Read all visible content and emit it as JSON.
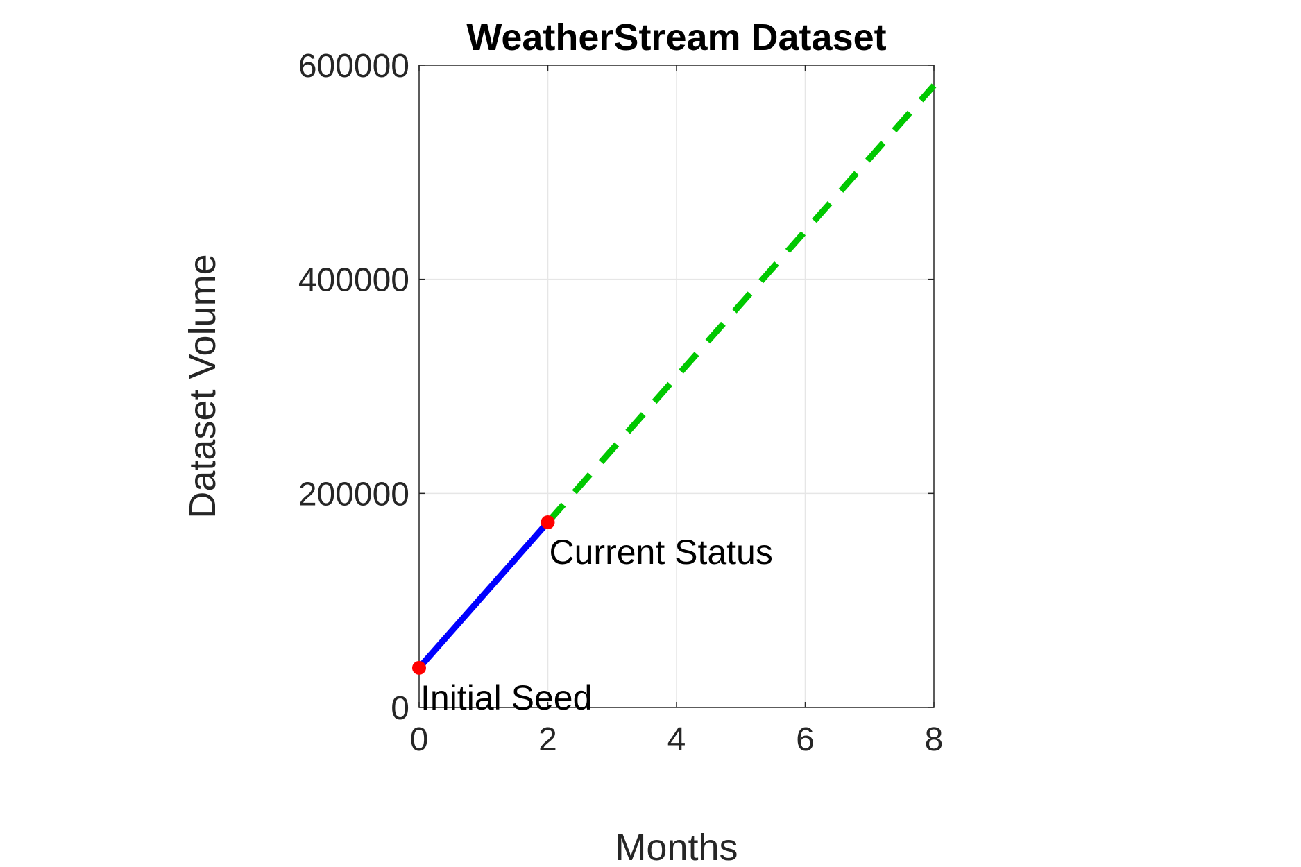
{
  "chart_data": {
    "type": "line",
    "title": "WeatherStream Dataset",
    "xlabel": "Months",
    "ylabel": "Dataset Volume",
    "xlim": [
      0,
      8
    ],
    "ylim": [
      0,
      600000
    ],
    "xticks": [
      "0",
      "2",
      "4",
      "6",
      "8"
    ],
    "xtick_values": [
      0,
      2,
      4,
      6,
      8
    ],
    "yticks": [
      "0",
      "200000",
      "400000",
      "600000"
    ],
    "ytick_values": [
      0,
      200000,
      400000,
      600000
    ],
    "grid": true,
    "series": [
      {
        "style": "solid",
        "color": "#0000ff",
        "x": [
          0,
          2
        ],
        "y": [
          37000,
          173000
        ]
      },
      {
        "style": "dashed",
        "color": "#00c800",
        "x": [
          2,
          8
        ],
        "y": [
          173000,
          581000
        ]
      }
    ],
    "markers": {
      "color": "#ff0000",
      "points": [
        {
          "x": 0,
          "y": 37000
        },
        {
          "x": 2,
          "y": 173000
        }
      ]
    },
    "annotations": [
      {
        "text": "Initial Seed",
        "x": 0,
        "y": 37000
      },
      {
        "text": "Current Status",
        "x": 2,
        "y": 173000
      }
    ]
  }
}
